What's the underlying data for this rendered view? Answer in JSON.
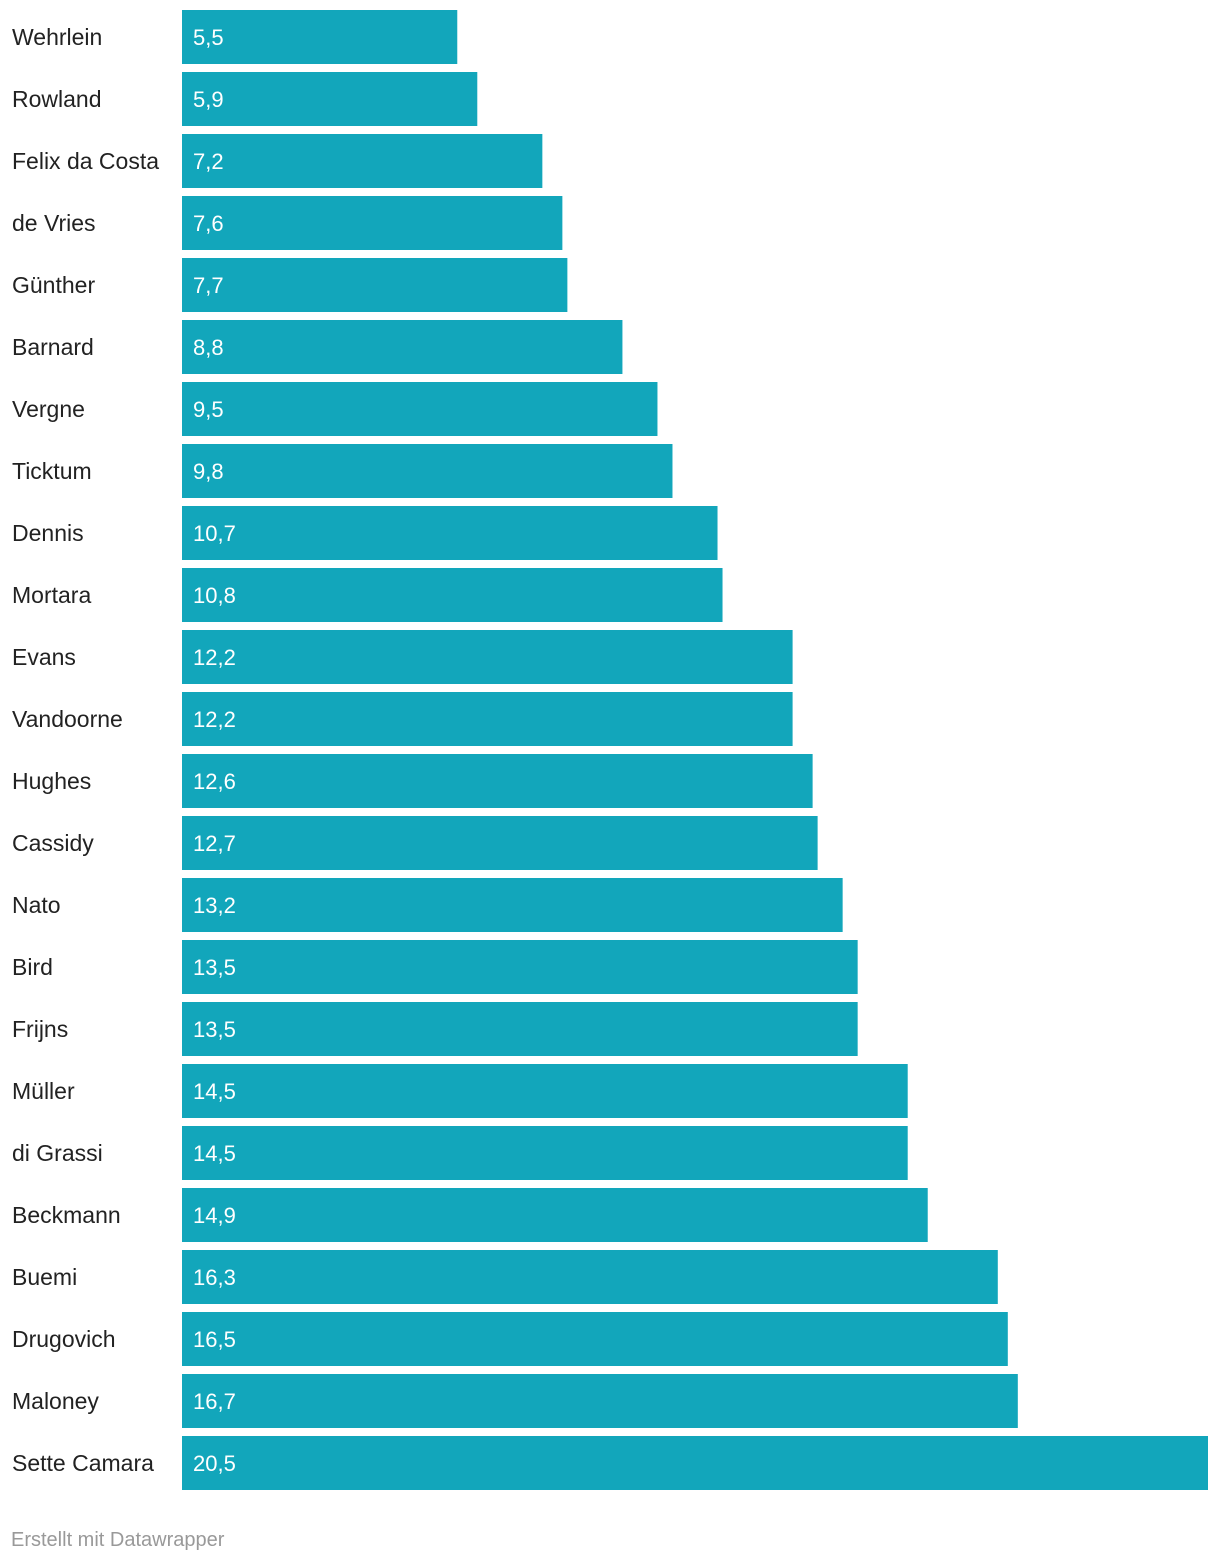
{
  "chart_data": {
    "type": "bar",
    "orientation": "horizontal",
    "categories": [
      "Wehrlein",
      "Rowland",
      "Felix da Costa",
      "de Vries",
      "Günther",
      "Barnard",
      "Vergne",
      "Ticktum",
      "Dennis",
      "Mortara",
      "Evans",
      "Vandoorne",
      "Hughes",
      "Cassidy",
      "Nato",
      "Bird",
      "Frijns",
      "Müller",
      "di Grassi",
      "Beckmann",
      "Buemi",
      "Drugovich",
      "Maloney",
      "Sette Camara"
    ],
    "values": [
      5.5,
      5.9,
      7.2,
      7.6,
      7.7,
      8.8,
      9.5,
      9.8,
      10.7,
      10.8,
      12.2,
      12.2,
      12.6,
      12.7,
      13.2,
      13.5,
      13.5,
      14.5,
      14.5,
      14.9,
      16.3,
      16.5,
      16.7,
      20.5
    ],
    "value_labels": [
      "5,5",
      "5,9",
      "7,2",
      "7,6",
      "7,7",
      "8,8",
      "9,5",
      "9,8",
      "10,7",
      "10,8",
      "12,2",
      "12,2",
      "12,6",
      "12,7",
      "13,2",
      "13,5",
      "13,5",
      "14,5",
      "14,5",
      "14,9",
      "16,3",
      "16,5",
      "16,7",
      "20,5"
    ],
    "xlim": [
      0,
      20.5
    ],
    "grid": false,
    "bar_color": "#12a6bb"
  },
  "footer": {
    "credit": "Erstellt mit Datawrapper"
  }
}
